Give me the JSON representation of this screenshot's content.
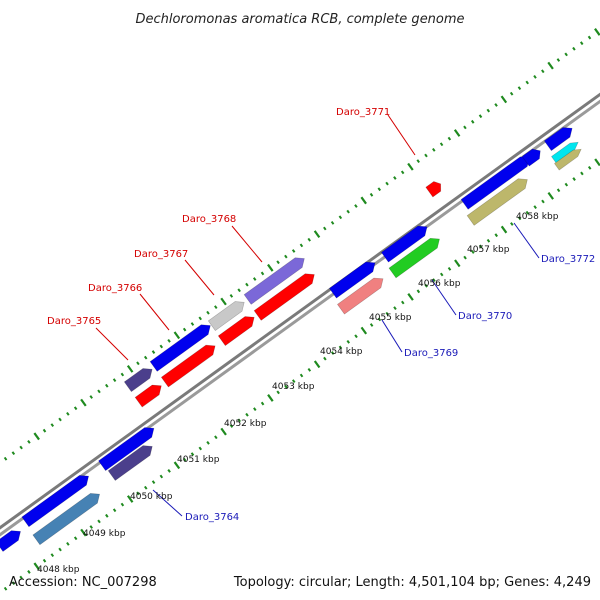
{
  "title": "Dechloromonas aromatica RCB, complete genome",
  "footer": {
    "accession": "Accession: NC_007298",
    "summary": "Topology: circular; Length: 4,501,104 bp; Genes: 4,249"
  },
  "colors": {
    "backbone": "#808080",
    "tick": "#1f8a1f",
    "gene_label_top": "#d40000",
    "gene_label_bottom": "#1a1ab8",
    "blue": "#0000ee",
    "dark_purple": "#4b3f8c",
    "red": "#ff0000",
    "gray": "#c8c8c8",
    "violet": "#7b68d8",
    "pink": "#f08080",
    "green": "#22cc22",
    "khaki": "#bdb76b",
    "steel": "#4682b4",
    "cyan": "#00e5ee"
  },
  "scale_labels": [
    "4048 kbp",
    "4049 kbp",
    "4050 kbp",
    "4051 kbp",
    "4052 kbp",
    "4053 kbp",
    "4054 kbp",
    "4055 kbp",
    "4056 kbp",
    "4057 kbp",
    "4058 kbp"
  ],
  "gene_labels_top": [
    "Daro_3765",
    "Daro_3766",
    "Daro_3767",
    "Daro_3768",
    "Daro_3771"
  ],
  "gene_labels_bottom": [
    "Daro_3764",
    "Daro_3769",
    "Daro_3770",
    "Daro_3772"
  ]
}
